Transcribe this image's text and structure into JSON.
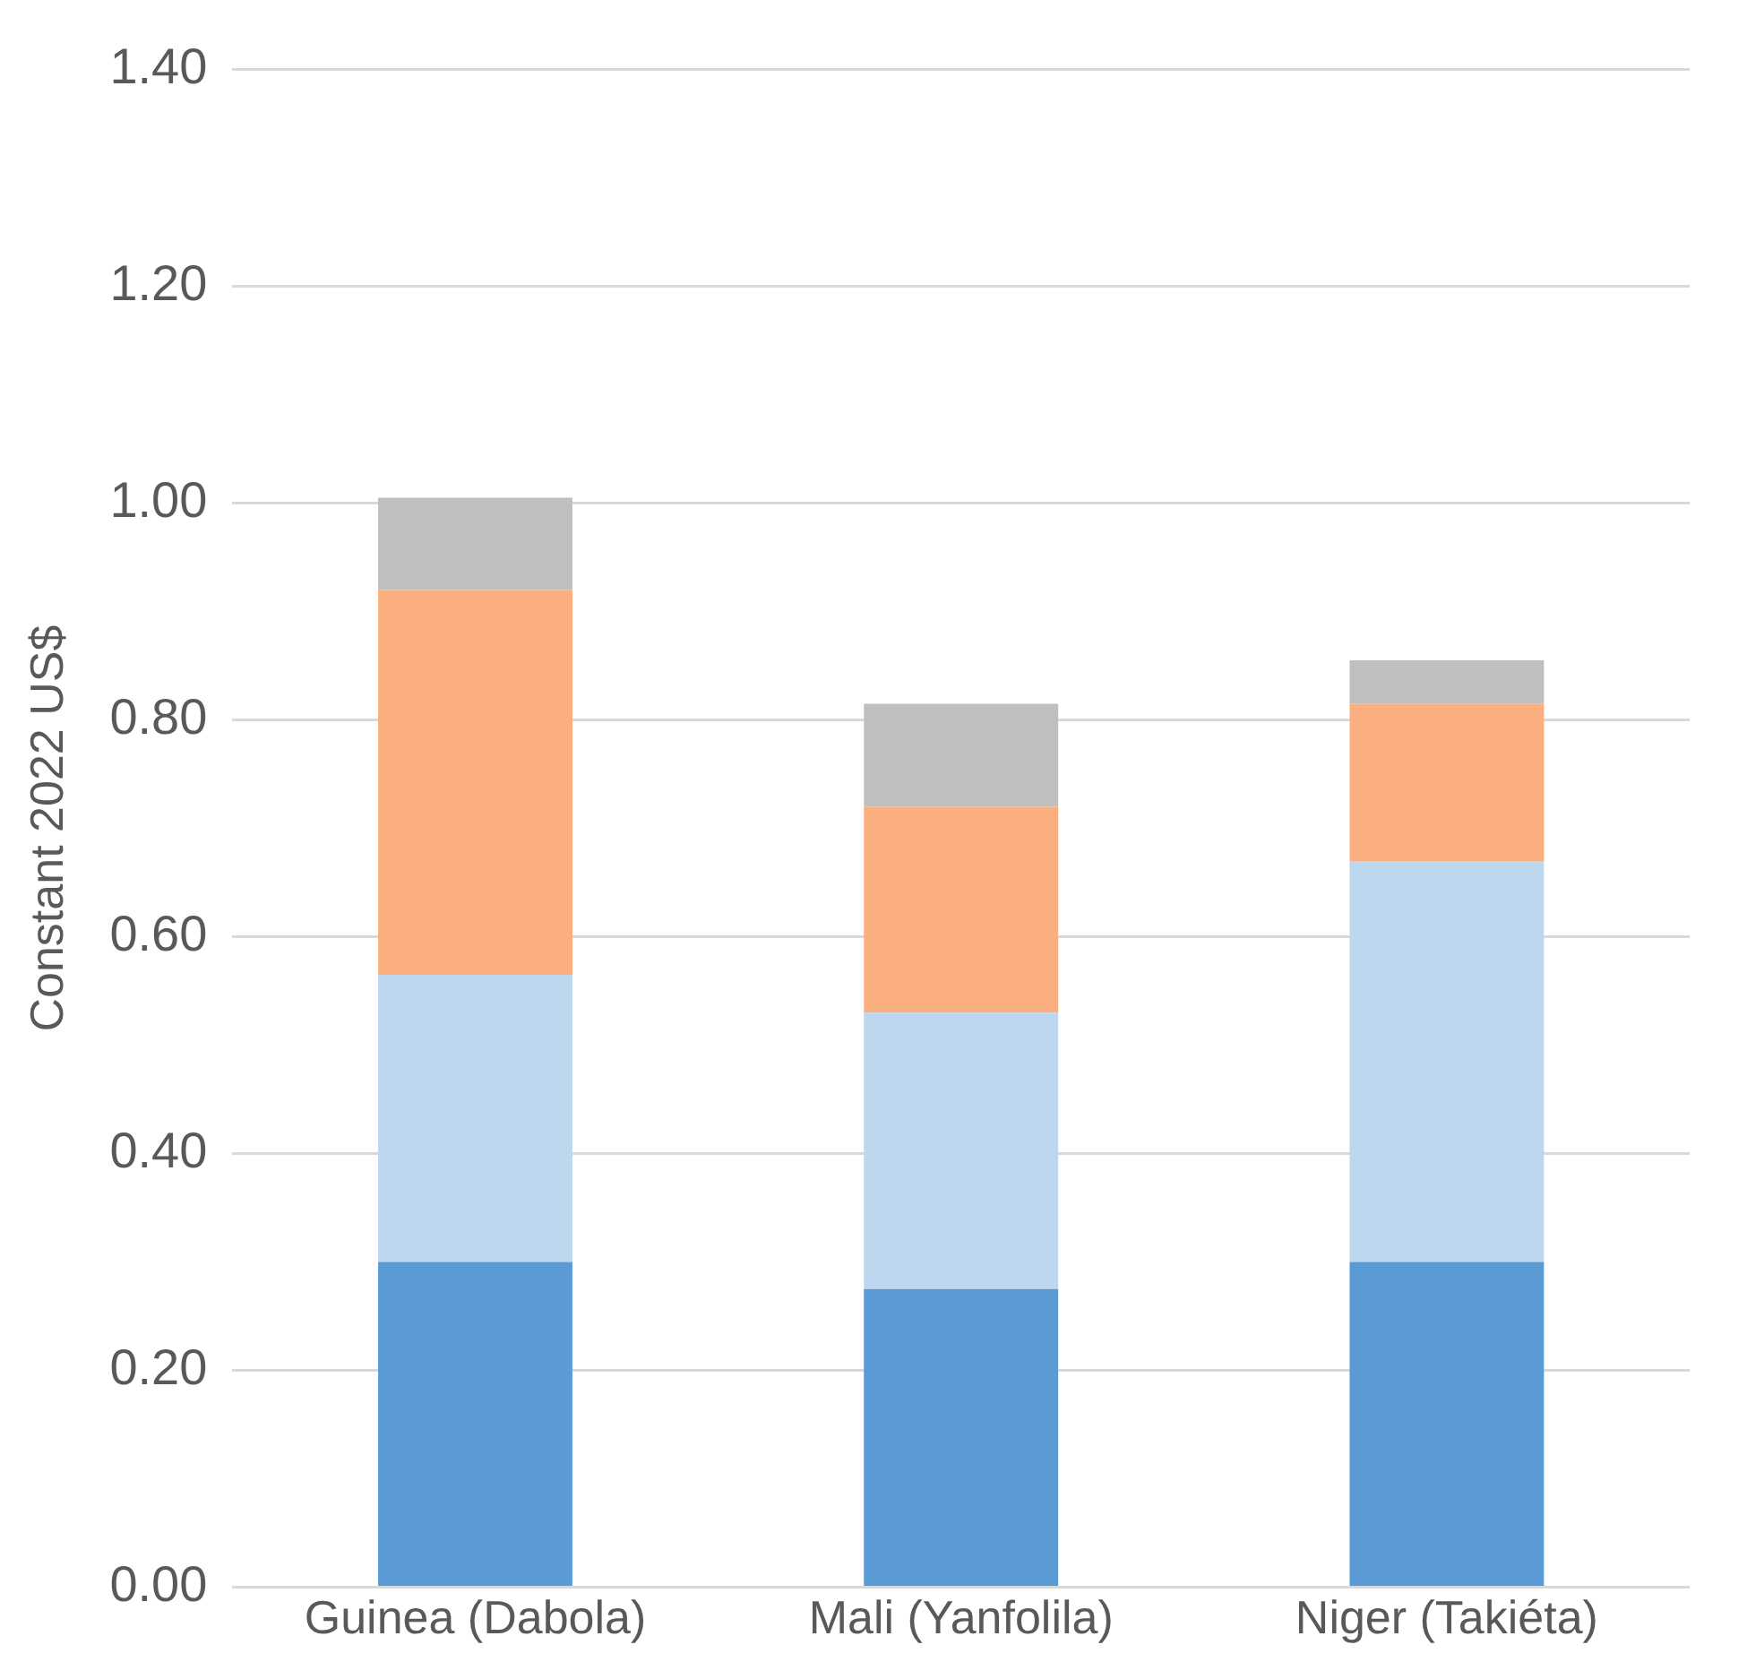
{
  "chart_data": {
    "type": "bar",
    "stacked": true,
    "ylabel": "Constant 2022 US$",
    "categories": [
      "Guinea (Dabola)",
      "Mali (Yanfolila)",
      "Niger (Takiéta)"
    ],
    "series": [
      {
        "color": "#5b9bd5",
        "values": [
          0.3,
          0.275,
          0.3
        ]
      },
      {
        "color": "#bdd7ee",
        "values": [
          0.265,
          0.255,
          0.37
        ]
      },
      {
        "color": "#fbae7e",
        "values": [
          0.355,
          0.19,
          0.145
        ]
      },
      {
        "color": "#bfbfbf",
        "values": [
          0.085,
          0.095,
          0.04
        ]
      }
    ],
    "ylim": [
      0,
      1.4
    ],
    "yticks": [
      {
        "value": 0,
        "label": "0.00"
      },
      {
        "value": 0.2,
        "label": "0.20"
      },
      {
        "value": 0.4,
        "label": "0.40"
      },
      {
        "value": 0.6,
        "label": "0.60"
      },
      {
        "value": 0.8,
        "label": "0.80"
      },
      {
        "value": 1,
        "label": "1.00"
      },
      {
        "value": 1.2,
        "label": "1.20"
      },
      {
        "value": 1.4,
        "label": "1.40"
      }
    ],
    "grid": "y",
    "legend": false
  }
}
